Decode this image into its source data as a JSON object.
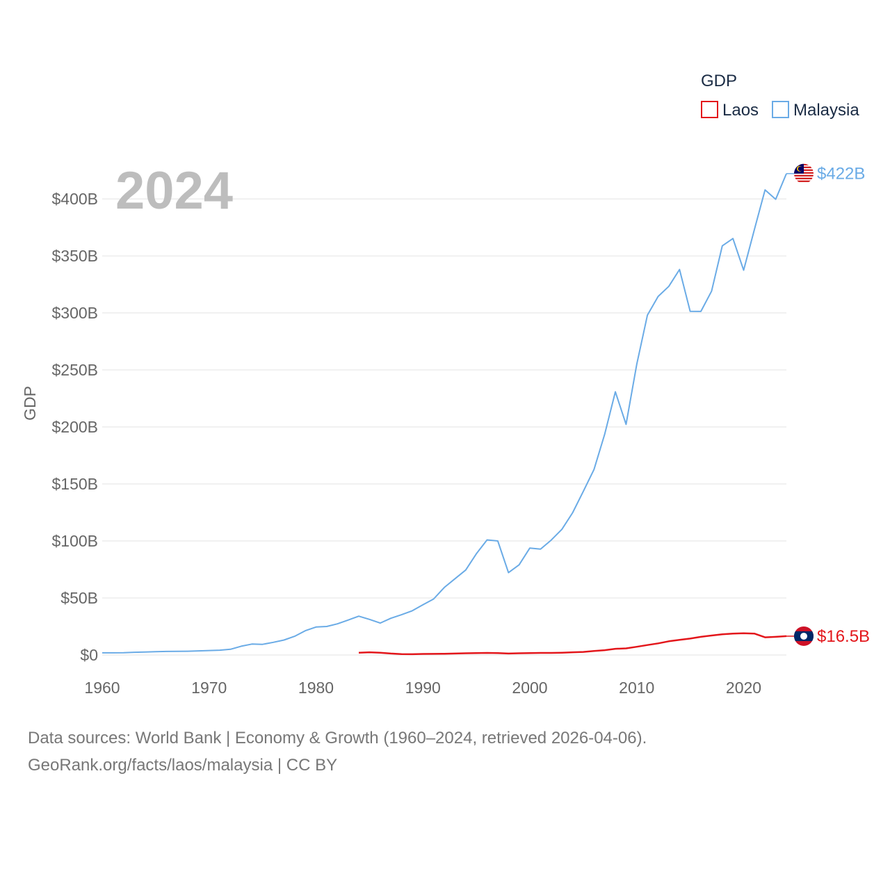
{
  "chart_data": {
    "type": "line",
    "year_label": "2024",
    "ylabel": "GDP",
    "xlabel": "",
    "xlim": [
      1960,
      2024
    ],
    "ylim": [
      0,
      422
    ],
    "y_unit": "billion USD",
    "x_ticks": [
      "1960",
      "1970",
      "1980",
      "1990",
      "2000",
      "2010",
      "2020"
    ],
    "y_ticks": [
      {
        "value": 0,
        "label": "$0"
      },
      {
        "value": 50,
        "label": "$50B"
      },
      {
        "value": 100,
        "label": "$100B"
      },
      {
        "value": 150,
        "label": "$150B"
      },
      {
        "value": 200,
        "label": "$200B"
      },
      {
        "value": 250,
        "label": "$250B"
      },
      {
        "value": 300,
        "label": "$300B"
      },
      {
        "value": 350,
        "label": "$350B"
      },
      {
        "value": 400,
        "label": "$400B"
      }
    ],
    "grid": true,
    "legend": {
      "title": "GDP",
      "position": "top-right"
    },
    "series": [
      {
        "name": "Laos",
        "color": "#e3161b",
        "end_label": "$16.5B",
        "flag_icon": "laos-flag-icon",
        "x": [
          1984,
          1985,
          1986,
          1987,
          1988,
          1989,
          1990,
          1991,
          1992,
          1993,
          1994,
          1995,
          1996,
          1997,
          1998,
          1999,
          2000,
          2001,
          2002,
          2003,
          2004,
          2005,
          2006,
          2007,
          2008,
          2009,
          2010,
          2011,
          2012,
          2013,
          2014,
          2015,
          2016,
          2017,
          2018,
          2019,
          2020,
          2021,
          2022,
          2023,
          2024
        ],
        "values": [
          2.0,
          2.4,
          2.0,
          1.3,
          0.8,
          0.7,
          0.9,
          1.0,
          1.1,
          1.3,
          1.5,
          1.7,
          1.8,
          1.7,
          1.3,
          1.5,
          1.7,
          1.8,
          1.8,
          2.0,
          2.4,
          2.7,
          3.5,
          4.2,
          5.4,
          5.8,
          7.2,
          8.7,
          10.2,
          12.0,
          13.3,
          14.4,
          15.9,
          17.1,
          18.1,
          18.7,
          19.0,
          18.8,
          15.5,
          15.9,
          16.5
        ]
      },
      {
        "name": "Malaysia",
        "color": "#6aabe6",
        "end_label": "$422B",
        "flag_icon": "malaysia-flag-icon",
        "x": [
          1960,
          1961,
          1962,
          1963,
          1964,
          1965,
          1966,
          1967,
          1968,
          1969,
          1970,
          1971,
          1972,
          1973,
          1974,
          1975,
          1976,
          1977,
          1978,
          1979,
          1980,
          1981,
          1982,
          1983,
          1984,
          1985,
          1986,
          1987,
          1988,
          1989,
          1990,
          1991,
          1992,
          1993,
          1994,
          1995,
          1996,
          1997,
          1998,
          1999,
          2000,
          2001,
          2002,
          2003,
          2004,
          2005,
          2006,
          2007,
          2008,
          2009,
          2010,
          2011,
          2012,
          2013,
          2014,
          2015,
          2016,
          2017,
          2018,
          2019,
          2020,
          2021,
          2022,
          2023,
          2024
        ],
        "values": [
          1.9,
          1.9,
          2.0,
          2.4,
          2.6,
          2.9,
          3.1,
          3.2,
          3.3,
          3.6,
          3.9,
          4.2,
          5.0,
          7.7,
          9.6,
          9.3,
          11.1,
          13.1,
          16.4,
          21.3,
          24.5,
          25.0,
          27.3,
          30.6,
          34.0,
          31.2,
          28.0,
          32.2,
          35.3,
          38.8,
          44.0,
          49.1,
          59.2,
          66.9,
          74.5,
          88.8,
          100.9,
          100.0,
          72.2,
          79.1,
          93.8,
          92.8,
          100.8,
          110.2,
          124.7,
          143.5,
          162.7,
          193.5,
          230.8,
          202.3,
          255.0,
          298.0,
          314.4,
          323.3,
          338.1,
          301.4,
          301.3,
          319.1,
          358.8,
          365.2,
          337.5,
          373.0,
          407.9,
          399.7,
          422.2
        ]
      }
    ]
  },
  "footer": {
    "line1": "Data sources: World Bank | Economy & Growth (1960–2024, retrieved 2026-04-06).",
    "line2": "GeoRank.org/facts/laos/malaysia | CC BY"
  }
}
